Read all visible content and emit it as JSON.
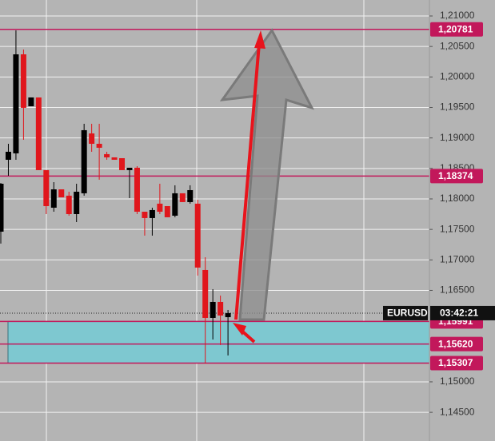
{
  "chart_data": {
    "type": "candlestick",
    "symbol": "EURUSD",
    "timer": "03:42:21",
    "ylim": [
      1.1403,
      1.21262
    ],
    "yticks": [
      {
        "value": 1.21,
        "label": "1,21000"
      },
      {
        "value": 1.205,
        "label": "1,20500"
      },
      {
        "value": 1.2,
        "label": "1,20000"
      },
      {
        "value": 1.195,
        "label": "1,19500"
      },
      {
        "value": 1.19,
        "label": "1,19000"
      },
      {
        "value": 1.185,
        "label": "1,18500"
      },
      {
        "value": 1.18,
        "label": "1,18000"
      },
      {
        "value": 1.175,
        "label": "1,17500"
      },
      {
        "value": 1.17,
        "label": "1,17000"
      },
      {
        "value": 1.165,
        "label": "1,16500"
      },
      {
        "value": 1.15,
        "label": "1,15000"
      },
      {
        "value": 1.145,
        "label": "1,14500"
      }
    ],
    "grid": true,
    "up_color": "#000000",
    "down_color": "#e0161c",
    "level_color": "#c2185b",
    "zone_color": "#7ec8d0",
    "current_price": 1.16127,
    "levels": [
      {
        "value": 1.20781,
        "label": "1,20781"
      },
      {
        "value": 1.18374,
        "label": "1,18374"
      },
      {
        "value": 1.15991,
        "label": "1,15991"
      },
      {
        "value": 1.1562,
        "label": "1,15620"
      },
      {
        "value": 1.15307,
        "label": "1,15307"
      }
    ],
    "open": [
      1.17463,
      1.18642,
      1.18747,
      1.20371,
      1.1952,
      1.19664,
      1.18472,
      1.17856,
      1.18157,
      1.18053,
      1.17751,
      1.18092,
      1.19074,
      1.18904,
      1.18734,
      1.18681,
      1.18668,
      1.18472,
      1.18511,
      1.1779,
      1.17686,
      1.17922,
      1.17882,
      1.17725,
      1.18092,
      1.17948,
      1.17922,
      1.16834,
      1.16048,
      1.1631,
      1.16061
    ],
    "high": [
      1.18262,
      1.18904,
      1.20764,
      1.2045,
      1.19664,
      1.19664,
      1.18472,
      1.18275,
      1.18157,
      1.18118,
      1.18249,
      1.19232,
      1.19232,
      1.19232,
      1.18773,
      1.18681,
      1.18668,
      1.18511,
      1.18537,
      1.1779,
      1.17856,
      1.18249,
      1.17882,
      1.18223,
      1.18092,
      1.18223,
      1.17987,
      1.17044,
      1.1652,
      1.16415,
      1.16179
    ],
    "low": [
      1.17267,
      1.1838,
      1.18642,
      1.1897,
      1.1952,
      1.18472,
      1.17751,
      1.1779,
      1.18026,
      1.17725,
      1.1762,
      1.18053,
      1.18773,
      1.18315,
      1.18642,
      1.18642,
      1.18472,
      1.18013,
      1.17751,
      1.17398,
      1.17398,
      1.17751,
      1.17699,
      1.17699,
      1.17948,
      1.17922,
      1.16743,
      1.15302,
      1.15695,
      1.15603,
      1.15433
    ],
    "close": [
      1.18249,
      1.18773,
      1.20371,
      1.19494,
      1.19664,
      1.18472,
      1.17882,
      1.18157,
      1.18026,
      1.17751,
      1.18118,
      1.19127,
      1.18904,
      1.18839,
      1.18681,
      1.18642,
      1.18472,
      1.18511,
      1.1779,
      1.17686,
      1.17817,
      1.1779,
      1.17699,
      1.18092,
      1.17948,
      1.18144,
      1.16874,
      1.16048,
      1.1631,
      1.16088,
      1.16127
    ]
  }
}
